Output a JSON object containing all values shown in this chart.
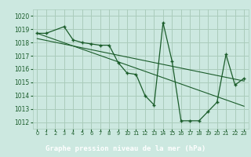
{
  "title": "Graphe pression niveau de la mer (hPa)",
  "bg_color": "#cce8e0",
  "plot_bg_color": "#cce8e0",
  "grid_color": "#aaccbb",
  "line_color": "#1a5c2a",
  "title_bg_color": "#2a6e3a",
  "title_text_color": "#ffffff",
  "xlim": [
    -0.5,
    23.5
  ],
  "ylim": [
    1011.5,
    1020.5
  ],
  "yticks": [
    1012,
    1013,
    1014,
    1015,
    1016,
    1017,
    1018,
    1019,
    1020
  ],
  "xticks": [
    0,
    1,
    2,
    3,
    4,
    5,
    6,
    7,
    8,
    9,
    10,
    11,
    12,
    13,
    14,
    15,
    16,
    17,
    18,
    19,
    20,
    21,
    22,
    23
  ],
  "series": [
    [
      0,
      1018.7
    ],
    [
      1,
      1018.7
    ],
    [
      3,
      1019.2
    ],
    [
      4,
      1018.2
    ],
    [
      5,
      1018.0
    ],
    [
      6,
      1017.9
    ],
    [
      7,
      1017.8
    ],
    [
      8,
      1017.8
    ],
    [
      9,
      1016.5
    ],
    [
      10,
      1015.7
    ],
    [
      11,
      1015.6
    ],
    [
      12,
      1014.0
    ],
    [
      13,
      1013.3
    ],
    [
      14,
      1019.5
    ],
    [
      15,
      1016.6
    ],
    [
      16,
      1012.1
    ],
    [
      17,
      1012.1
    ],
    [
      18,
      1012.1
    ],
    [
      19,
      1012.8
    ],
    [
      20,
      1013.5
    ],
    [
      21,
      1017.1
    ],
    [
      22,
      1014.8
    ],
    [
      23,
      1015.3
    ]
  ],
  "trend_series": [
    [
      0,
      1018.7
    ],
    [
      23,
      1013.2
    ]
  ],
  "trend2_series": [
    [
      0,
      1018.3
    ],
    [
      23,
      1015.1
    ]
  ]
}
